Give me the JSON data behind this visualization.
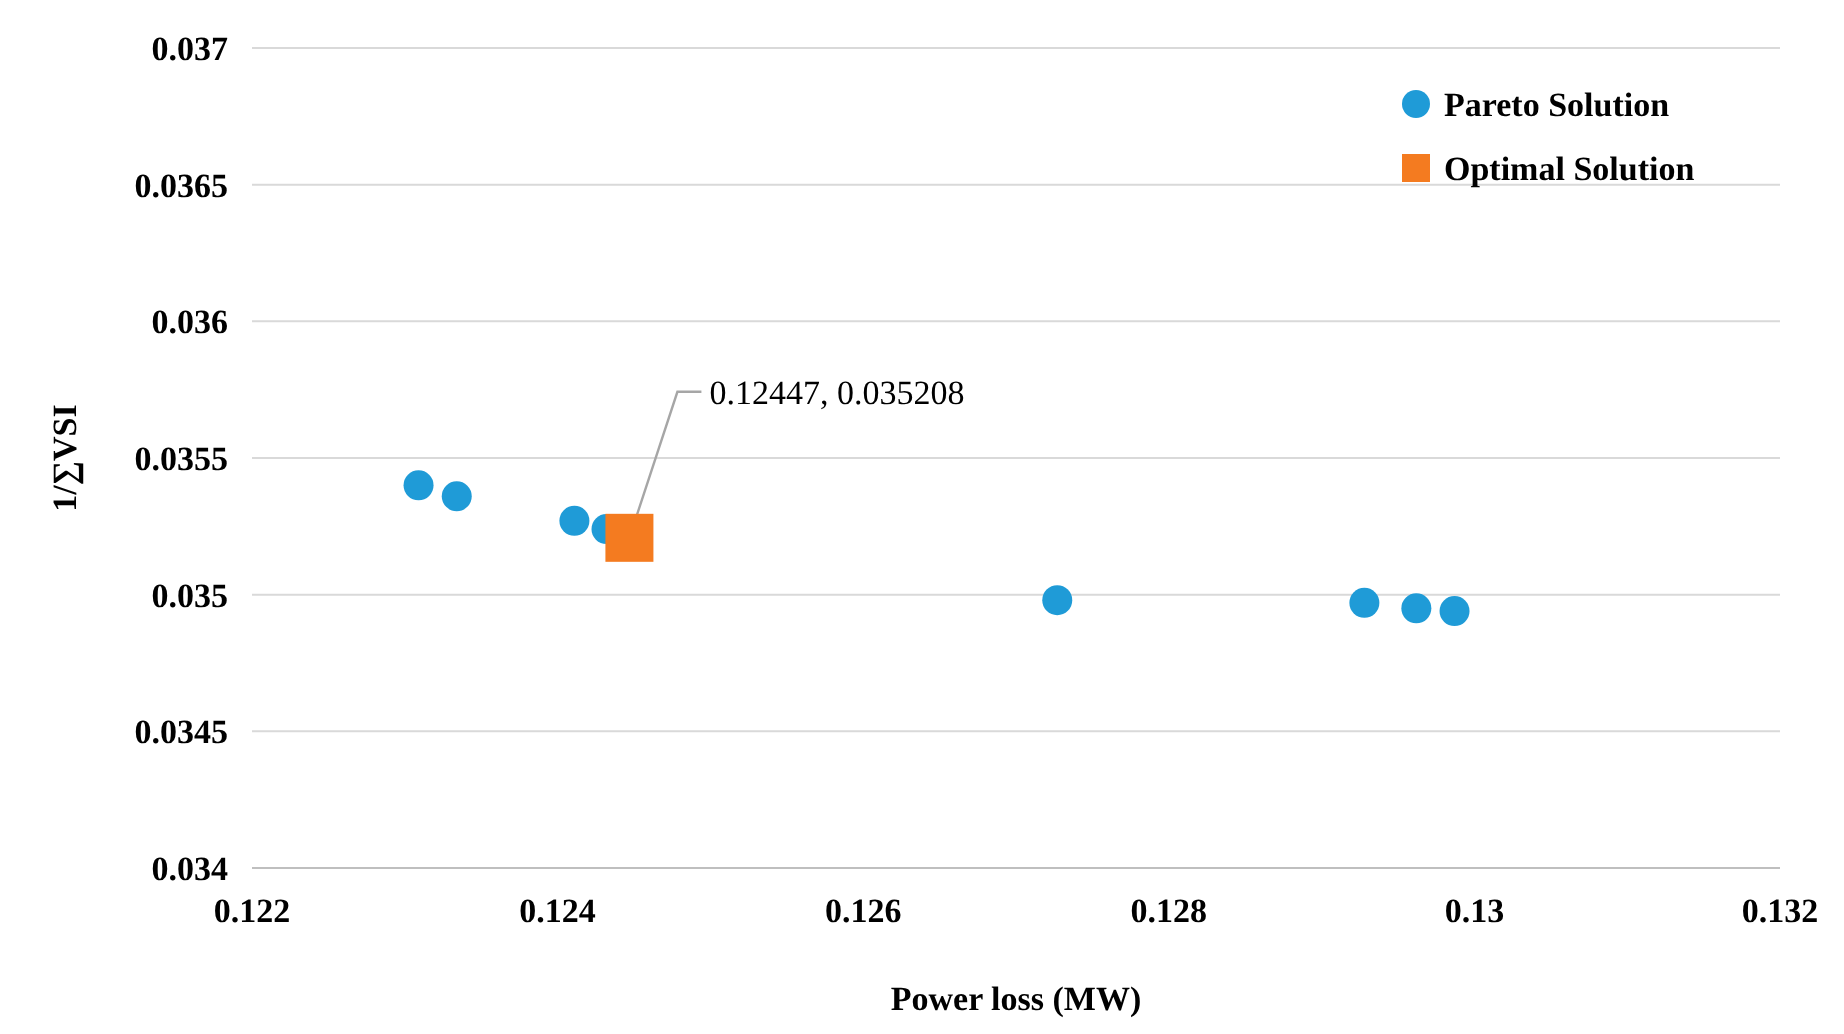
{
  "chart_data": {
    "type": "scatter",
    "xlabel": "Power loss (MW)",
    "ylabel": "1/∑VSI",
    "xlim": [
      0.122,
      0.132
    ],
    "xticks": [
      0.122,
      0.124,
      0.126,
      0.128,
      0.13,
      0.132
    ],
    "ylim": [
      0.034,
      0.037
    ],
    "yticks": [
      0.034,
      0.0345,
      0.035,
      0.0355,
      0.036,
      0.0365,
      0.037
    ],
    "grid": "y",
    "legend": "top right",
    "series": [
      {
        "name": "Pareto Solution",
        "color": "#1f9bd7",
        "marker": "circle",
        "x": [
          0.12309,
          0.12334,
          0.12411,
          0.12432,
          0.12727,
          0.12928,
          0.12962,
          0.12987
        ],
        "values": [
          0.0354,
          0.03536,
          0.03527,
          0.03524,
          0.03498,
          0.03497,
          0.03495,
          0.03494
        ]
      },
      {
        "name": "Optimal Solution",
        "color": "#f47b20",
        "marker": "square",
        "x": [
          0.12447
        ],
        "values": [
          0.035208
        ]
      }
    ],
    "annotations": [
      {
        "text": "0.12447, 0.035208",
        "x": 0.12447,
        "y": 0.035208
      }
    ]
  }
}
